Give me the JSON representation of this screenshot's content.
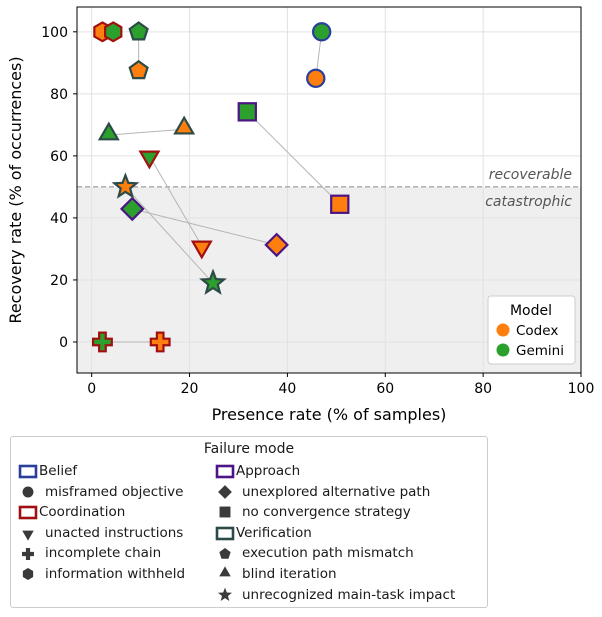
{
  "chart_data": {
    "type": "scatter",
    "xlabel": "Presence rate (% of samples)",
    "ylabel": "Recovery rate (% of occurrences)",
    "xlim": [
      -3,
      100
    ],
    "ylim": [
      -10,
      108
    ],
    "xticks": [
      0,
      20,
      40,
      60,
      80,
      100
    ],
    "yticks": [
      0,
      20,
      40,
      60,
      80,
      100
    ],
    "grid": true,
    "threshold": {
      "y": 50,
      "label_above": "recoverable",
      "label_below": "catastrophic"
    },
    "model_legend": {
      "title": "Model",
      "placement": "lower-right",
      "entries": [
        {
          "name": "Codex",
          "color": "#ff7f0e"
        },
        {
          "name": "Gemini",
          "color": "#2ca02c"
        }
      ]
    },
    "category_colors": {
      "Belief": "#2a3f9a",
      "Coordination": "#a01010",
      "Approach": "#4b1585",
      "Verification": "#2c4a48"
    },
    "failure_legend": {
      "title": "Failure mode",
      "columns": [
        [
          {
            "kind": "category",
            "category": "Belief",
            "label": "Belief"
          },
          {
            "kind": "marker",
            "marker": "circle",
            "label": "misframed objective"
          },
          {
            "kind": "category",
            "category": "Coordination",
            "label": "Coordination"
          },
          {
            "kind": "marker",
            "marker": "triangle-down",
            "label": "unacted instructions"
          },
          {
            "kind": "marker",
            "marker": "plus",
            "label": "incomplete chain"
          },
          {
            "kind": "marker",
            "marker": "hexagon",
            "label": "information withheld"
          }
        ],
        [
          {
            "kind": "category",
            "category": "Approach",
            "label": "Approach"
          },
          {
            "kind": "marker",
            "marker": "diamond",
            "label": "unexplored alternative path"
          },
          {
            "kind": "marker",
            "marker": "square",
            "label": "no convergence strategy"
          },
          {
            "kind": "category",
            "category": "Verification",
            "label": "Verification"
          },
          {
            "kind": "marker",
            "marker": "pentagon",
            "label": "execution path mismatch"
          },
          {
            "kind": "marker",
            "marker": "triangle-up",
            "label": "blind iteration"
          },
          {
            "kind": "marker",
            "marker": "star",
            "label": "unrecognized main-task impact"
          }
        ]
      ]
    },
    "series": [
      {
        "mode": "misframed objective",
        "category": "Belief",
        "marker": "circle",
        "codex": [
          45.8,
          85
        ],
        "gemini": [
          47,
          100
        ]
      },
      {
        "mode": "unacted instructions",
        "category": "Coordination",
        "marker": "triangle-down",
        "codex": [
          22.5,
          31
        ],
        "gemini": [
          11.8,
          60
        ]
      },
      {
        "mode": "incomplete chain",
        "category": "Coordination",
        "marker": "plus",
        "codex": [
          14,
          0
        ],
        "gemini": [
          2.2,
          0
        ]
      },
      {
        "mode": "information withheld",
        "category": "Coordination",
        "marker": "hexagon",
        "codex": [
          2.2,
          100
        ],
        "gemini": [
          4.4,
          100
        ]
      },
      {
        "mode": "unexplored alternative path",
        "category": "Approach",
        "marker": "diamond",
        "codex": [
          37.8,
          31.3
        ],
        "gemini": [
          8.3,
          42.9
        ]
      },
      {
        "mode": "no convergence strategy",
        "category": "Approach",
        "marker": "square",
        "codex": [
          50.7,
          44.4
        ],
        "gemini": [
          31.8,
          74.2
        ]
      },
      {
        "mode": "execution path mismatch",
        "category": "Verification",
        "marker": "pentagon",
        "codex": [
          9.6,
          87.5
        ],
        "gemini": [
          9.6,
          100
        ]
      },
      {
        "mode": "blind iteration",
        "category": "Verification",
        "marker": "triangle-up",
        "codex": [
          18.9,
          68.6
        ],
        "gemini": [
          3.5,
          66.7
        ]
      },
      {
        "mode": "unrecognized main-task impact",
        "category": "Verification",
        "marker": "star",
        "codex": [
          6.9,
          50
        ],
        "gemini": [
          24.8,
          19
        ]
      }
    ]
  }
}
